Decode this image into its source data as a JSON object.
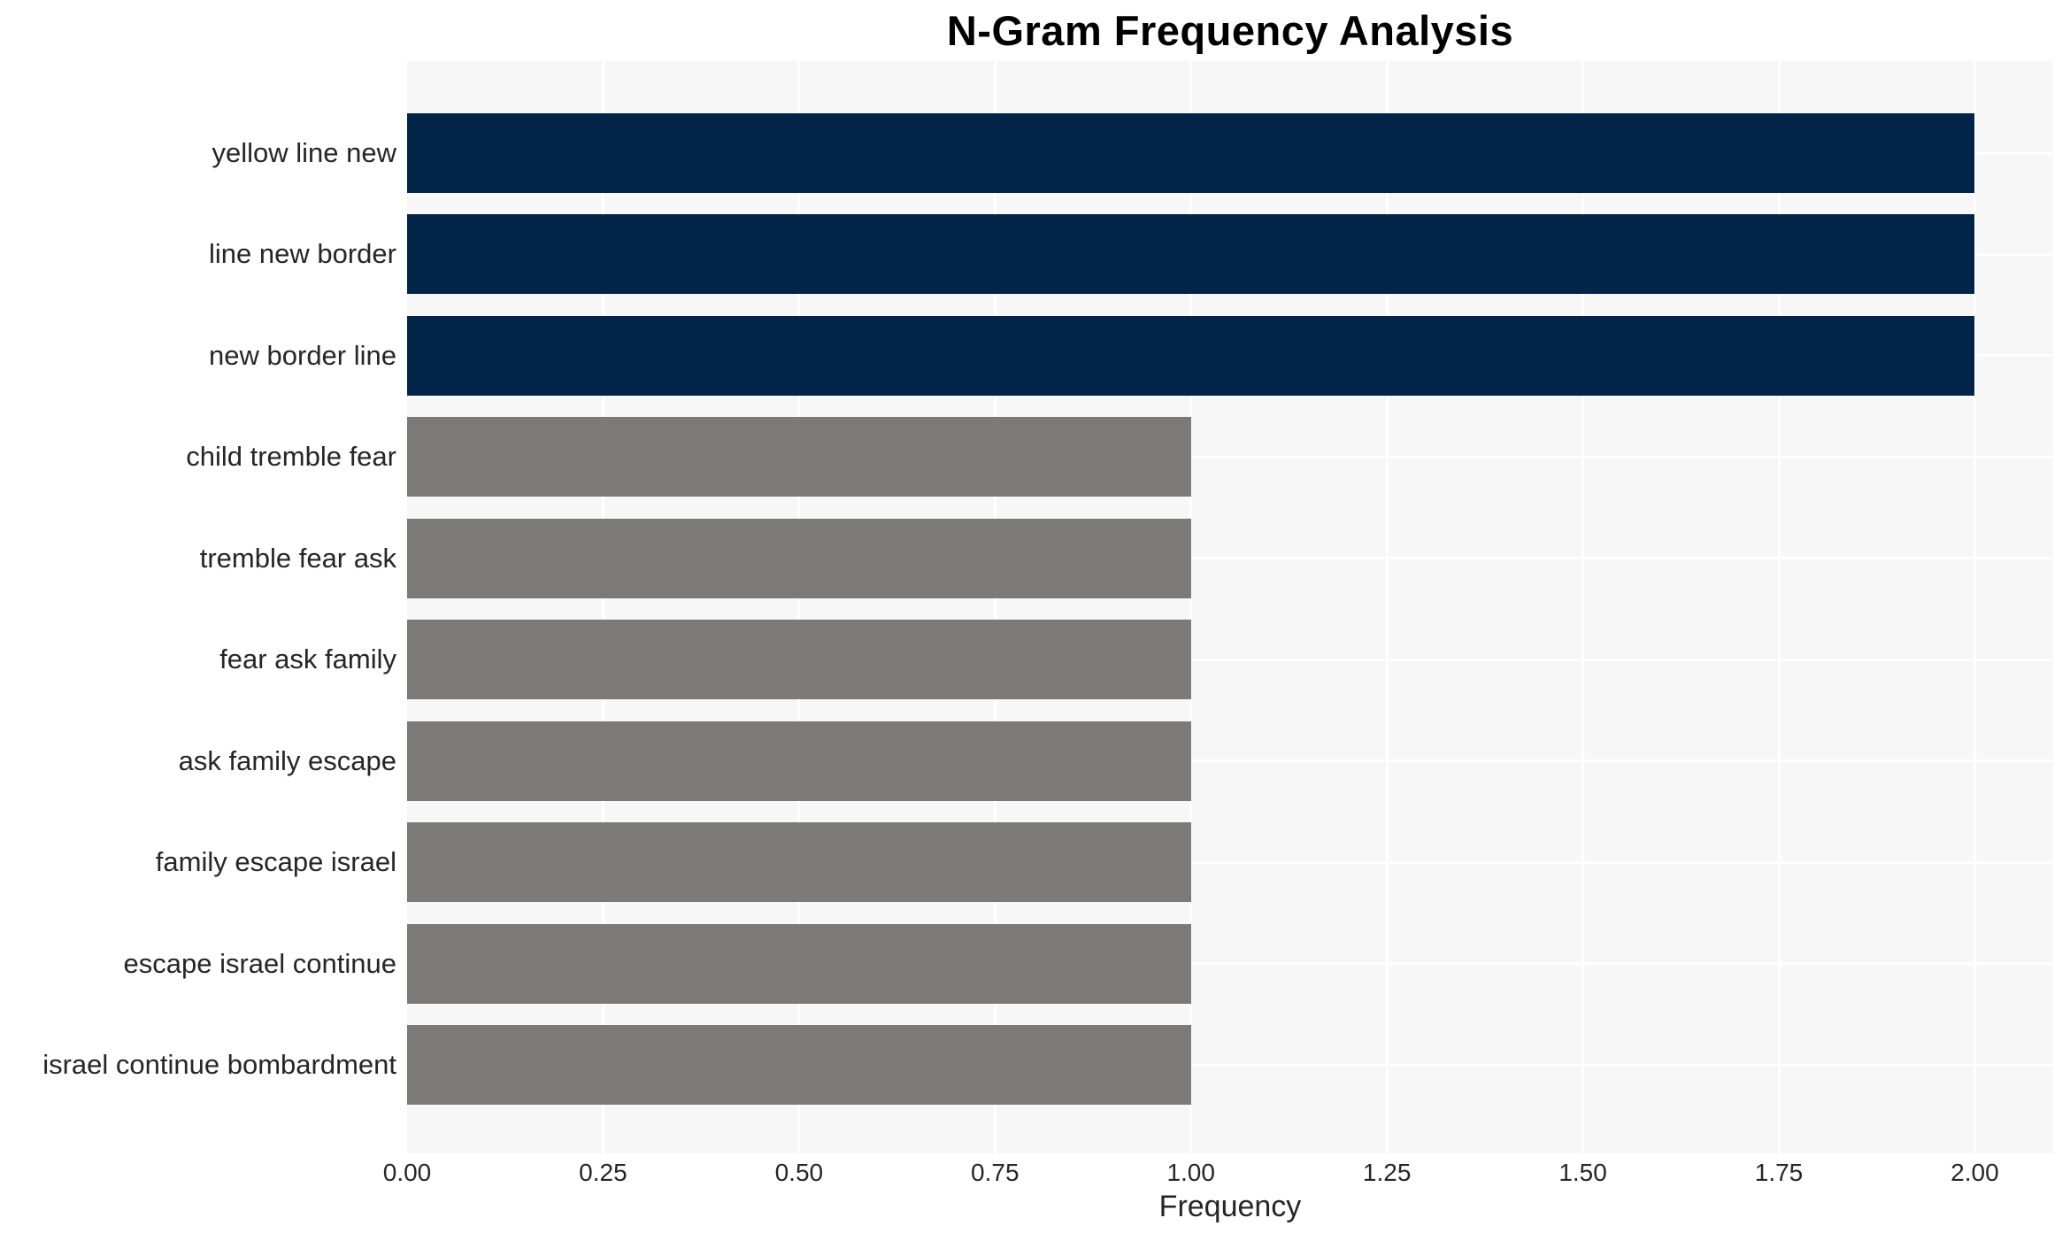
{
  "chart_data": {
    "type": "bar",
    "orientation": "horizontal",
    "title": "N-Gram Frequency Analysis",
    "xlabel": "Frequency",
    "ylabel": "",
    "categories": [
      "yellow line new",
      "line new border",
      "new border line",
      "child tremble fear",
      "tremble fear ask",
      "fear ask family",
      "ask family escape",
      "family escape israel",
      "escape israel continue",
      "israel continue bombardment"
    ],
    "values": [
      2,
      2,
      2,
      1,
      1,
      1,
      1,
      1,
      1,
      1
    ],
    "bar_colors": [
      "#032449",
      "#032449",
      "#032449",
      "#7b7a76",
      "#7b7a76",
      "#7b7a76",
      "#7b7a76",
      "#7b7a76",
      "#7b7a76",
      "#7b7a76"
    ],
    "xlim": [
      0,
      2.1
    ],
    "xtick_labels": [
      "0.00",
      "0.25",
      "0.50",
      "0.75",
      "1.00",
      "1.25",
      "1.50",
      "1.75",
      "2.00"
    ],
    "xtick_values": [
      0,
      0.25,
      0.5,
      0.75,
      1.0,
      1.25,
      1.5,
      1.75,
      2.0
    ],
    "grid": true,
    "legend": false,
    "colors": {
      "highlight_bar": "#032449",
      "normal_bar": "#7b7a76",
      "plot_background": "#f7f7f7",
      "grid_line": "#ffffff",
      "tick_text": "#262626",
      "title_text": "#000000"
    }
  }
}
